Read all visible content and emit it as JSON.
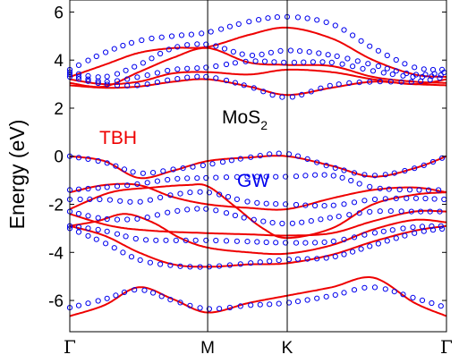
{
  "chart_data": {
    "type": "line",
    "title": "",
    "ylabel": "Energy (eV)",
    "xlabel": "",
    "ylim": [
      -7.3,
      6.5
    ],
    "y_ticks": [
      6,
      4,
      2,
      0,
      -2,
      -4,
      -6
    ],
    "y_tick_labels": [
      "6",
      "4",
      "2",
      "0",
      "-2",
      "-4",
      "-6"
    ],
    "x_ticks": [
      {
        "label": "Γ",
        "x": 0.0
      },
      {
        "label": "M",
        "x": 1.0
      },
      {
        "label": "K",
        "x": 1.577
      },
      {
        "label": "Γ",
        "x": 2.732
      }
    ],
    "grid": false,
    "annotations": [
      {
        "text": "TBH",
        "color": "#ee0000"
      },
      {
        "text": "MoS",
        "sub": "2",
        "color": "#000000"
      },
      {
        "text": "GW",
        "color": "#0000ee"
      }
    ],
    "series": [
      {
        "style": "line",
        "color": "#ee0000",
        "bands": [
          [
            [
              0,
              -6.65
            ],
            [
              0.25,
              -6.2
            ],
            [
              0.5,
              -5.45
            ],
            [
              0.75,
              -5.95
            ],
            [
              1.0,
              -6.5
            ],
            [
              1.3,
              -6.1
            ],
            [
              1.577,
              -5.8
            ],
            [
              1.9,
              -5.45
            ],
            [
              2.2,
              -5.05
            ],
            [
              2.5,
              -6.1
            ],
            [
              2.732,
              -6.65
            ]
          ],
          [
            [
              0,
              -2.9
            ],
            [
              0.25,
              -3.3
            ],
            [
              0.5,
              -4.0
            ],
            [
              0.75,
              -4.5
            ],
            [
              1.0,
              -4.6
            ],
            [
              1.3,
              -4.5
            ],
            [
              1.577,
              -4.45
            ],
            [
              1.9,
              -4.1
            ],
            [
              2.2,
              -3.55
            ],
            [
              2.5,
              -3.1
            ],
            [
              2.732,
              -2.9
            ]
          ],
          [
            [
              0,
              -2.9
            ],
            [
              0.2,
              -2.7
            ],
            [
              0.4,
              -2.4
            ],
            [
              0.6,
              -2.75
            ],
            [
              0.8,
              -3.4
            ],
            [
              1.0,
              -3.8
            ],
            [
              1.3,
              -4.0
            ],
            [
              1.577,
              -4.05
            ],
            [
              1.9,
              -3.7
            ],
            [
              2.2,
              -3.05
            ],
            [
              2.5,
              -2.65
            ],
            [
              2.732,
              -2.75
            ]
          ],
          [
            [
              0,
              -2.4
            ],
            [
              0.3,
              -2.9
            ],
            [
              0.6,
              -3.1
            ],
            [
              1.0,
              -3.2
            ],
            [
              1.3,
              -3.25
            ],
            [
              1.577,
              -3.3
            ],
            [
              1.9,
              -3.2
            ],
            [
              2.2,
              -2.7
            ],
            [
              2.5,
              -2.3
            ],
            [
              2.732,
              -2.3
            ]
          ],
          [
            [
              0,
              -2.2
            ],
            [
              0.3,
              -1.5
            ],
            [
              0.6,
              -1.3
            ],
            [
              0.85,
              -1.2
            ],
            [
              1.0,
              -1.25
            ],
            [
              1.2,
              -2.1
            ],
            [
              1.4,
              -3.0
            ],
            [
              1.577,
              -3.4
            ],
            [
              1.9,
              -3.0
            ],
            [
              2.2,
              -2.0
            ],
            [
              2.5,
              -1.6
            ],
            [
              2.732,
              -1.5
            ]
          ],
          [
            [
              0,
              -1.5
            ],
            [
              0.25,
              -1.2
            ],
            [
              0.5,
              -1.2
            ],
            [
              0.75,
              -1.7
            ],
            [
              1.0,
              -2.0
            ],
            [
              1.3,
              -2.15
            ],
            [
              1.577,
              -2.2
            ],
            [
              1.9,
              -1.75
            ],
            [
              2.2,
              -1.4
            ],
            [
              2.5,
              -1.3
            ],
            [
              2.732,
              -1.5
            ]
          ],
          [
            [
              0,
              0.0
            ],
            [
              0.25,
              -0.2
            ],
            [
              0.5,
              -0.9
            ],
            [
              0.75,
              -0.6
            ],
            [
              1.0,
              -0.2
            ],
            [
              1.3,
              -0.05
            ],
            [
              1.577,
              0.0
            ],
            [
              1.9,
              -0.4
            ],
            [
              2.2,
              -0.85
            ],
            [
              2.5,
              -0.5
            ],
            [
              2.732,
              0.0
            ]
          ],
          [
            [
              0,
              2.95
            ],
            [
              0.25,
              2.85
            ],
            [
              0.5,
              2.9
            ],
            [
              0.75,
              3.1
            ],
            [
              1.0,
              3.2
            ],
            [
              1.3,
              2.9
            ],
            [
              1.577,
              2.55
            ],
            [
              1.9,
              2.85
            ],
            [
              2.2,
              3.1
            ],
            [
              2.5,
              3.0
            ],
            [
              2.732,
              2.95
            ]
          ],
          [
            [
              0,
              3.05
            ],
            [
              0.25,
              2.9
            ],
            [
              0.5,
              3.5
            ],
            [
              0.75,
              4.1
            ],
            [
              1.0,
              4.5
            ],
            [
              1.3,
              3.9
            ],
            [
              1.577,
              3.8
            ],
            [
              1.9,
              3.75
            ],
            [
              2.2,
              3.3
            ],
            [
              2.5,
              3.1
            ],
            [
              2.732,
              3.05
            ]
          ],
          [
            [
              0,
              3.2
            ],
            [
              0.25,
              3.0
            ],
            [
              0.5,
              3.1
            ],
            [
              0.75,
              3.45
            ],
            [
              1.0,
              3.5
            ],
            [
              1.3,
              3.4
            ],
            [
              1.577,
              3.6
            ],
            [
              1.9,
              3.5
            ],
            [
              2.2,
              3.2
            ],
            [
              2.5,
              3.0
            ],
            [
              2.732,
              3.2
            ]
          ],
          [
            [
              0,
              3.3
            ],
            [
              0.25,
              3.8
            ],
            [
              0.5,
              4.3
            ],
            [
              0.75,
              4.5
            ],
            [
              1.0,
              4.55
            ],
            [
              1.3,
              5.05
            ],
            [
              1.577,
              5.35
            ],
            [
              1.9,
              4.9
            ],
            [
              2.2,
              4.0
            ],
            [
              2.5,
              3.4
            ],
            [
              2.732,
              3.3
            ]
          ]
        ]
      },
      {
        "style": "marker",
        "color": "#0000ee",
        "bands": [
          [
            [
              0,
              -6.3
            ],
            [
              0.25,
              -5.95
            ],
            [
              0.5,
              -5.55
            ],
            [
              0.75,
              -6.0
            ],
            [
              1.0,
              -6.35
            ],
            [
              1.3,
              -6.2
            ],
            [
              1.577,
              -6.1
            ],
            [
              1.9,
              -5.8
            ],
            [
              2.2,
              -5.45
            ],
            [
              2.5,
              -5.9
            ],
            [
              2.732,
              -6.3
            ]
          ],
          [
            [
              0,
              -3.0
            ],
            [
              0.25,
              -3.6
            ],
            [
              0.5,
              -4.3
            ],
            [
              0.75,
              -4.55
            ],
            [
              1.0,
              -4.6
            ],
            [
              1.3,
              -4.45
            ],
            [
              1.577,
              -4.3
            ],
            [
              1.9,
              -4.2
            ],
            [
              2.2,
              -3.7
            ],
            [
              2.5,
              -3.2
            ],
            [
              2.732,
              -3.0
            ]
          ],
          [
            [
              0,
              -2.9
            ],
            [
              0.25,
              -3.1
            ],
            [
              0.5,
              -3.45
            ],
            [
              0.75,
              -3.5
            ],
            [
              1.0,
              -3.5
            ],
            [
              1.3,
              -3.55
            ],
            [
              1.577,
              -3.6
            ],
            [
              1.9,
              -3.55
            ],
            [
              2.2,
              -3.2
            ],
            [
              2.5,
              -2.95
            ],
            [
              2.732,
              -2.9
            ]
          ],
          [
            [
              0,
              -2.3
            ],
            [
              0.25,
              -2.6
            ],
            [
              0.5,
              -2.6
            ],
            [
              0.75,
              -2.3
            ],
            [
              1.0,
              -2.2
            ],
            [
              1.3,
              -2.6
            ],
            [
              1.577,
              -2.8
            ],
            [
              1.9,
              -2.55
            ],
            [
              2.2,
              -2.3
            ],
            [
              2.5,
              -2.3
            ],
            [
              2.732,
              -2.3
            ]
          ],
          [
            [
              0,
              -1.8
            ],
            [
              0.25,
              -1.8
            ],
            [
              0.5,
              -1.9
            ],
            [
              0.75,
              -1.6
            ],
            [
              1.0,
              -1.5
            ],
            [
              1.3,
              -1.9
            ],
            [
              1.577,
              -2.0
            ],
            [
              1.9,
              -2.05
            ],
            [
              2.2,
              -1.8
            ],
            [
              2.5,
              -1.75
            ],
            [
              2.732,
              -1.8
            ]
          ],
          [
            [
              0,
              -1.4
            ],
            [
              0.25,
              -1.3
            ],
            [
              0.5,
              -1.15
            ],
            [
              0.75,
              -0.95
            ],
            [
              1.0,
              -0.9
            ],
            [
              1.3,
              -0.85
            ],
            [
              1.577,
              -0.85
            ],
            [
              1.9,
              -0.8
            ],
            [
              2.2,
              -1.3
            ],
            [
              2.5,
              -1.4
            ],
            [
              2.732,
              -1.4
            ]
          ],
          [
            [
              0,
              0.0
            ],
            [
              0.25,
              -0.25
            ],
            [
              0.5,
              -0.7
            ],
            [
              0.75,
              -0.55
            ],
            [
              1.0,
              -0.35
            ],
            [
              1.3,
              -0.05
            ],
            [
              1.577,
              0.1
            ],
            [
              1.9,
              -0.45
            ],
            [
              2.2,
              -0.8
            ],
            [
              2.5,
              -0.5
            ],
            [
              2.732,
              0.0
            ]
          ],
          [
            [
              0,
              3.3
            ],
            [
              0.25,
              3.0
            ],
            [
              0.5,
              2.95
            ],
            [
              0.75,
              3.2
            ],
            [
              1.0,
              3.3
            ],
            [
              1.3,
              2.9
            ],
            [
              1.577,
              2.45
            ],
            [
              1.9,
              2.95
            ],
            [
              2.2,
              3.1
            ],
            [
              2.5,
              3.1
            ],
            [
              2.732,
              3.3
            ]
          ],
          [
            [
              0,
              3.4
            ],
            [
              0.25,
              3.1
            ],
            [
              0.5,
              3.3
            ],
            [
              0.75,
              3.6
            ],
            [
              1.0,
              3.7
            ],
            [
              1.3,
              3.95
            ],
            [
              1.577,
              3.9
            ],
            [
              1.9,
              3.9
            ],
            [
              2.2,
              3.55
            ],
            [
              2.5,
              3.3
            ],
            [
              2.732,
              3.4
            ]
          ],
          [
            [
              0,
              3.5
            ],
            [
              0.25,
              3.3
            ],
            [
              0.5,
              3.8
            ],
            [
              0.75,
              4.5
            ],
            [
              1.0,
              4.65
            ],
            [
              1.3,
              4.2
            ],
            [
              1.577,
              4.4
            ],
            [
              1.9,
              4.2
            ],
            [
              2.2,
              3.8
            ],
            [
              2.5,
              3.4
            ],
            [
              2.732,
              3.5
            ]
          ],
          [
            [
              0,
              3.6
            ],
            [
              0.25,
              4.3
            ],
            [
              0.5,
              4.8
            ],
            [
              0.75,
              5.0
            ],
            [
              1.0,
              5.15
            ],
            [
              1.3,
              5.6
            ],
            [
              1.577,
              5.8
            ],
            [
              1.9,
              5.5
            ],
            [
              2.2,
              4.5
            ],
            [
              2.5,
              3.7
            ],
            [
              2.732,
              3.6
            ]
          ]
        ]
      }
    ]
  }
}
